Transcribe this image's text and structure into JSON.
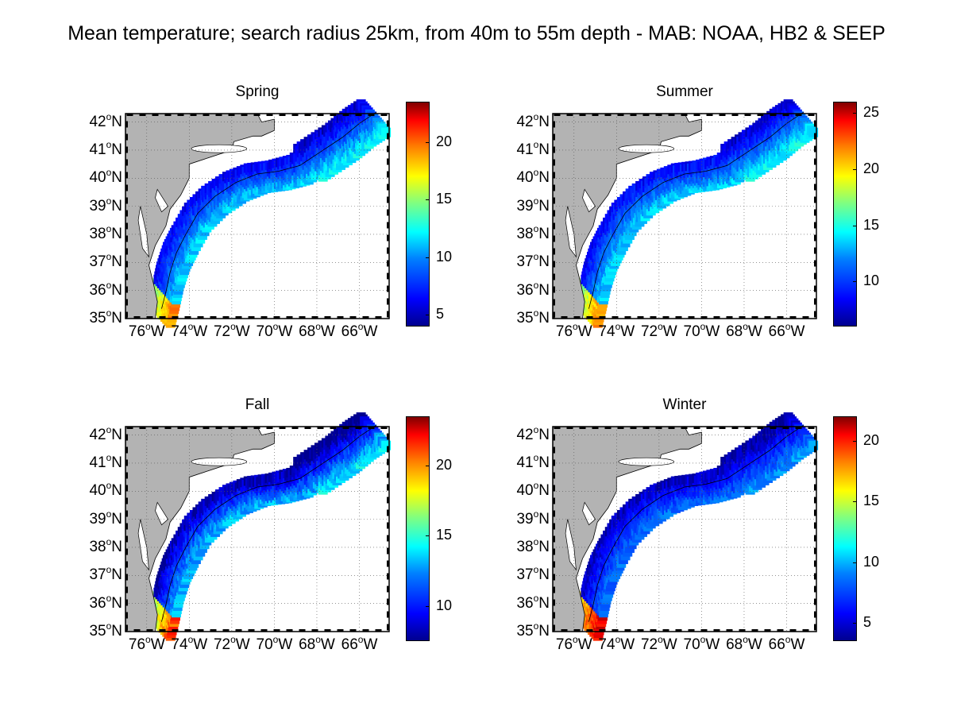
{
  "title": "Mean temperature; search radius 25km, from 40m to 55m depth - MAB: NOAA, HB2 & SEEP",
  "lat_labels": [
    "42",
    "41",
    "40",
    "39",
    "38",
    "37",
    "36",
    "35"
  ],
  "lat_suffix": "N",
  "lon_labels": [
    "76",
    "74",
    "72",
    "70",
    "68",
    "66"
  ],
  "lon_suffix": "W",
  "degree_symbol": "o",
  "colors": {
    "land": "#b3b3b3",
    "ocean": "#ffffff"
  },
  "panels": [
    {
      "name": "Spring",
      "colorbar_ticks": [
        "20",
        "15",
        "10",
        "5"
      ],
      "cmin": 4,
      "cmax": 23.5
    },
    {
      "name": "Summer",
      "colorbar_ticks": [
        "25",
        "20",
        "15",
        "10"
      ],
      "cmin": 6,
      "cmax": 26
    },
    {
      "name": "Fall",
      "colorbar_ticks": [
        "20",
        "15",
        "10"
      ],
      "cmin": 7.5,
      "cmax": 23.5
    },
    {
      "name": "Winter",
      "colorbar_ticks": [
        "20",
        "15",
        "10",
        "5"
      ],
      "cmin": 3.5,
      "cmax": 22
    }
  ]
}
